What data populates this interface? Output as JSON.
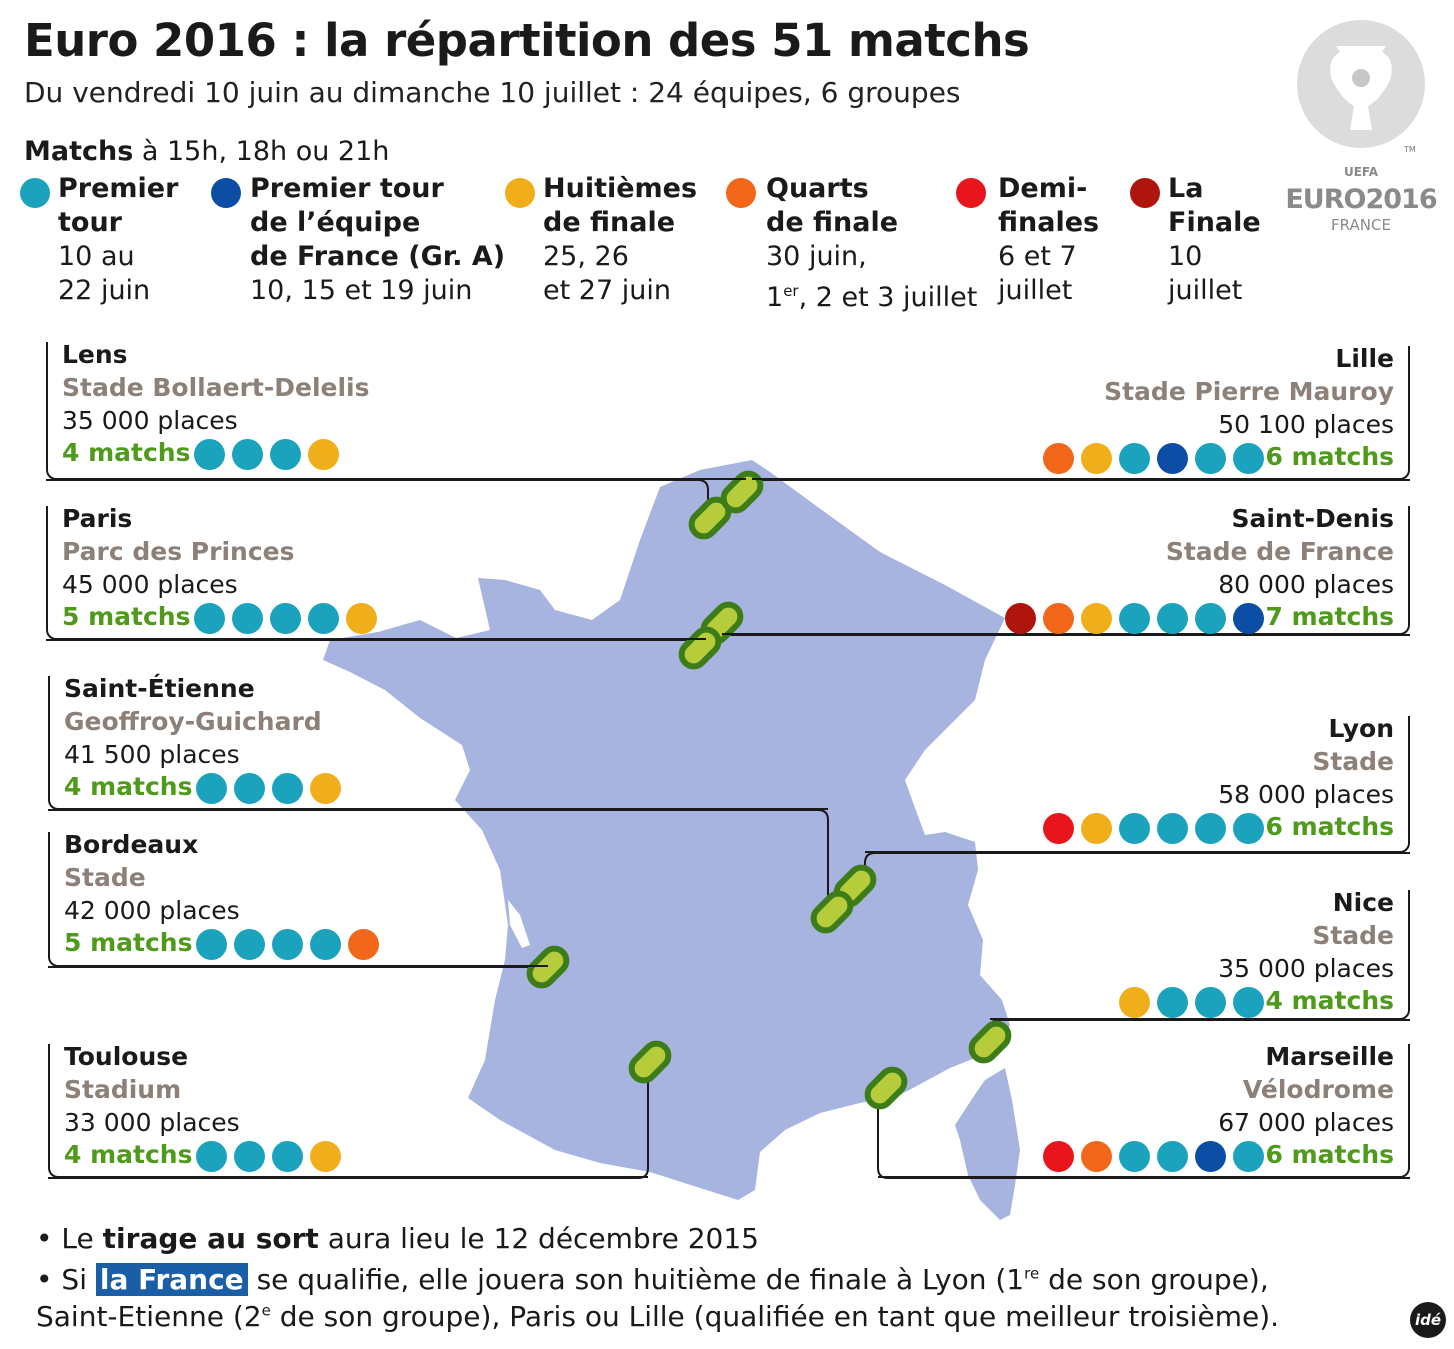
{
  "title": "Euro 2016 : la répartition des 51 matchs",
  "subtitle": "Du vendredi 10 juin au dimanche 10 juillet : 24 équipes, 6 groupes",
  "schedule": {
    "bold": "Matchs",
    "rest": " à 15h, 18h ou 21h"
  },
  "colors": {
    "premier_tour": "#1ba3bd",
    "france": "#0c4ea5",
    "huitiemes": "#f0ae1b",
    "quarts": "#f2671a",
    "demi": "#e8161c",
    "finale": "#b0150d",
    "map_fill": "#a7b4e0",
    "stadium_marker": "#b6cc3a",
    "stadium_ring": "#3c7d1a",
    "match_count": "#4f9a1b"
  },
  "legend": [
    {
      "key": "premier_tour",
      "title_1": "Premier",
      "title_2": "tour",
      "title_3": "",
      "date_1": "10 au",
      "date_2": "22 juin"
    },
    {
      "key": "france",
      "title_1": "Premier tour",
      "title_2": "de l’équipe",
      "title_3": "de France (Gr. A)",
      "date_1": "10, 15 et 19 juin",
      "date_2": ""
    },
    {
      "key": "huitiemes",
      "title_1": "Huitièmes",
      "title_2": "de finale",
      "title_3": "",
      "date_1": "25, 26",
      "date_2": "et 27 juin"
    },
    {
      "key": "quarts",
      "title_1": "Quarts",
      "title_2": "de finale",
      "title_3": "",
      "date_1": "30 juin,",
      "date_2_sup_pre": "1",
      "date_2_sup": "er",
      "date_2": ", 2 et 3 juillet"
    },
    {
      "key": "demi",
      "title_1": "Demi-",
      "title_2": "finales",
      "title_3": "",
      "date_1": "6 et 7",
      "date_2": "juillet"
    },
    {
      "key": "finale",
      "title_1": "La",
      "title_2": "Finale",
      "title_3": "",
      "date_1": "10",
      "date_2": "juillet"
    }
  ],
  "logo": {
    "uefa": "UEFA",
    "euro": "EURO2016",
    "country": "FRANCE",
    "tm": "TM"
  },
  "cities": [
    {
      "name": "Lens",
      "stadium": "Stade Bollaert-Delelis",
      "capacity": "35 000 places",
      "matches": "4 matchs",
      "dots": [
        "premier_tour",
        "premier_tour",
        "premier_tour",
        "huitiemes"
      ]
    },
    {
      "name": "Paris",
      "stadium": "Parc des Princes",
      "capacity": "45 000 places",
      "matches": "5 matchs",
      "dots": [
        "premier_tour",
        "premier_tour",
        "premier_tour",
        "premier_tour",
        "huitiemes"
      ]
    },
    {
      "name": "Saint-Étienne",
      "stadium": "Geoffroy-Guichard",
      "capacity": "41 500 places",
      "matches": "4 matchs",
      "dots": [
        "premier_tour",
        "premier_tour",
        "premier_tour",
        "huitiemes"
      ]
    },
    {
      "name": "Bordeaux",
      "stadium": "Stade",
      "capacity": "42 000 places",
      "matches": "5 matchs",
      "dots": [
        "premier_tour",
        "premier_tour",
        "premier_tour",
        "premier_tour",
        "quarts"
      ]
    },
    {
      "name": "Toulouse",
      "stadium": "Stadium",
      "capacity": "33 000 places",
      "matches": "4 matchs",
      "dots": [
        "premier_tour",
        "premier_tour",
        "premier_tour",
        "huitiemes"
      ]
    },
    {
      "name": "Lille",
      "stadium": "Stade Pierre Mauroy",
      "capacity": "50 100 places",
      "matches": "6 matchs",
      "dots": [
        "quarts",
        "huitiemes",
        "premier_tour",
        "france",
        "premier_tour",
        "premier_tour"
      ]
    },
    {
      "name": "Saint-Denis",
      "stadium": "Stade de France",
      "capacity": "80 000 places",
      "matches": "7 matchs",
      "dots": [
        "finale",
        "quarts",
        "huitiemes",
        "premier_tour",
        "premier_tour",
        "premier_tour",
        "france"
      ]
    },
    {
      "name": "Lyon",
      "stadium": "Stade",
      "capacity": "58 000 places",
      "matches": "6 matchs",
      "dots": [
        "demi",
        "huitiemes",
        "premier_tour",
        "premier_tour",
        "premier_tour",
        "premier_tour"
      ]
    },
    {
      "name": "Nice",
      "stadium": "Stade",
      "capacity": "35 000 places",
      "matches": "4 matchs",
      "dots": [
        "huitiemes",
        "premier_tour",
        "premier_tour",
        "premier_tour"
      ]
    },
    {
      "name": "Marseille",
      "stadium": "Vélodrome",
      "capacity": "67 000 places",
      "matches": "6 matchs",
      "dots": [
        "demi",
        "quarts",
        "premier_tour",
        "premier_tour",
        "france",
        "premier_tour"
      ]
    }
  ],
  "notes": {
    "line1_pre": "• Le ",
    "line1_bold": "tirage au sort",
    "line1_post": " aura lieu le 12 décembre 2015",
    "line2_pre": "• Si ",
    "line2_hl": "la France",
    "line2_a": " se qualifie, elle jouera son huitième de finale à Lyon (1",
    "line2_sup": "re",
    "line2_b": " de son groupe),",
    "line3_a": "Saint-Etienne (2",
    "line3_sup": "e",
    "line3_b": " de son groupe), Paris ou Lille (qualifiée en tant que meilleur troisième)."
  },
  "credit": "idé"
}
